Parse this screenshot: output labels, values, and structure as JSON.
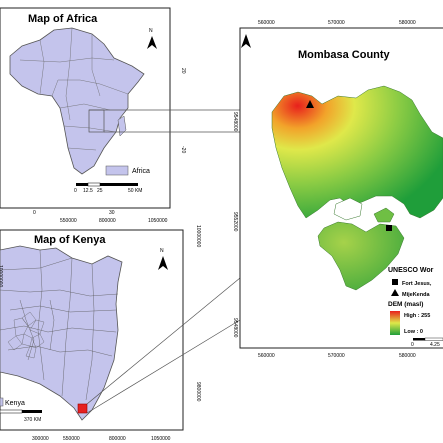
{
  "africa_panel": {
    "title": "Map of Africa",
    "legend": {
      "label": "Africa",
      "swatch_color": "#c4c4ec"
    },
    "north_arrow": "N",
    "scale_labels": [
      "0",
      "12.5",
      "25",
      "50 KM"
    ],
    "lat_labels": [
      "20",
      "-20"
    ],
    "lon_labels": [
      "0",
      "30"
    ]
  },
  "kenya_panel": {
    "title": "Map of Kenya",
    "legend": {
      "label": "Kenya",
      "swatch_color": "#c4c4ec"
    },
    "north_arrow": "N",
    "scale_labels": [
      "370 KM"
    ],
    "x_labels": [
      "300000",
      "550000",
      "800000",
      "1050000"
    ],
    "x_top_labels": [
      "550000",
      "800000",
      "1050000"
    ],
    "y_labels": [
      "10000000",
      "9800000"
    ],
    "y_left_labels": [
      "10000000"
    ],
    "study_area_color": "#e62020"
  },
  "mombasa_panel": {
    "title": "Mombasa County",
    "north_arrow": "N",
    "x_top_labels": [
      "560000",
      "570000",
      "580000"
    ],
    "x_bottom_labels": [
      "560000",
      "570000",
      "580000"
    ],
    "y_labels": [
      "9548000",
      "9552000",
      "9548000"
    ],
    "legend": {
      "site_heading": "UNESCO Wor",
      "sites": [
        {
          "symbol": "square",
          "label": "Fort Jesus,"
        },
        {
          "symbol": "triangle",
          "label": "MijeKenda"
        }
      ],
      "dem_heading": "DEM (masl)",
      "dem_high": "High : 255",
      "dem_low": "Low : 0",
      "scale_labels": [
        "0",
        "4.25"
      ]
    },
    "dem_colors": {
      "low": "#1f9e3a",
      "mid": "#dfe84a",
      "high": "#e8201c"
    }
  }
}
